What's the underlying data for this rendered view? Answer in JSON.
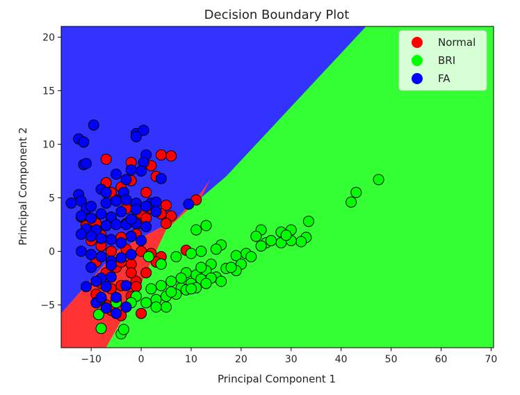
{
  "chart_data": {
    "type": "scatter",
    "title": "Decision Boundary Plot",
    "xlabel": "Principal Component 1",
    "ylabel": "Principal Component 2",
    "xlim": [
      -16,
      70.5
    ],
    "ylim": [
      -9,
      21
    ],
    "xticks": [
      -10,
      0,
      10,
      20,
      30,
      40,
      50,
      60,
      70
    ],
    "yticks": [
      -5,
      0,
      5,
      10,
      15,
      20
    ],
    "legend_position": "top-right",
    "regions": [
      {
        "name": "Normal",
        "color": "#ff3333",
        "polygon": [
          [
            -16,
            -9
          ],
          [
            -16,
            -5.8
          ],
          [
            -5,
            0
          ],
          [
            7,
            3
          ],
          [
            12,
            5.5
          ],
          [
            17,
            8.8
          ],
          [
            12,
            5
          ],
          [
            5,
            2
          ],
          [
            0,
            -3
          ],
          [
            -4,
            -6.5
          ],
          [
            -7,
            -9
          ]
        ]
      },
      {
        "name": "BRI",
        "color": "#33ff33",
        "polygon": [
          [
            -7,
            -9
          ],
          [
            -4,
            -6.5
          ],
          [
            0,
            -3
          ],
          [
            5,
            2
          ],
          [
            12,
            5
          ],
          [
            17,
            8.8
          ],
          [
            45,
            21
          ],
          [
            70.5,
            21
          ],
          [
            70.5,
            -9
          ]
        ]
      },
      {
        "name": "FA",
        "color": "#3333ff",
        "polygon": [
          [
            -16,
            -5.8
          ],
          [
            -5,
            0
          ],
          [
            7,
            3
          ],
          [
            12,
            5.5
          ],
          [
            17,
            8.8
          ],
          [
            16,
            8.8
          ],
          [
            12,
            5
          ],
          [
            17,
            7
          ],
          [
            45,
            21
          ],
          [
            -16,
            21
          ]
        ]
      }
    ],
    "series": [
      {
        "name": "Normal",
        "color": "#ff0000",
        "points": [
          [
            -7,
            8.6
          ],
          [
            -2,
            8.3
          ],
          [
            2,
            8
          ],
          [
            4,
            9
          ],
          [
            6,
            8.9
          ],
          [
            -4,
            6
          ],
          [
            -2,
            6.6
          ],
          [
            1,
            5.5
          ],
          [
            3,
            7
          ],
          [
            -7,
            6.4
          ],
          [
            -5,
            4.8
          ],
          [
            -3,
            4
          ],
          [
            0,
            3.5
          ],
          [
            2,
            4
          ],
          [
            5,
            4.3
          ],
          [
            6,
            3.3
          ],
          [
            4,
            3.5
          ],
          [
            -9,
            2.6
          ],
          [
            -6,
            3
          ],
          [
            -3,
            2.6
          ],
          [
            0,
            2.6
          ],
          [
            1,
            3.1
          ],
          [
            -11,
            2.4
          ],
          [
            -8,
            1.5
          ],
          [
            -4,
            1.3
          ],
          [
            -1,
            1.6
          ],
          [
            5,
            2.6
          ],
          [
            9,
            0.1
          ],
          [
            -10,
            1
          ],
          [
            -8,
            0.5
          ],
          [
            -6,
            0
          ],
          [
            -3,
            0.2
          ],
          [
            0,
            0
          ],
          [
            2,
            -0.2
          ],
          [
            4,
            -0.5
          ],
          [
            -9,
            -1
          ],
          [
            -7,
            -2
          ],
          [
            -5,
            -1.5
          ],
          [
            -2,
            -1.2
          ],
          [
            1,
            -2
          ],
          [
            3,
            -1
          ],
          [
            -8,
            -3
          ],
          [
            -6,
            -3.5
          ],
          [
            -4,
            -3.2
          ],
          [
            -1,
            -2.8
          ],
          [
            -7,
            -5
          ],
          [
            -5,
            -4.5
          ],
          [
            -2,
            -4.2
          ],
          [
            0,
            -5.8
          ],
          [
            -4,
            -6
          ],
          [
            -6,
            -5.5
          ],
          [
            11,
            4.8
          ],
          [
            -1,
            -3.3
          ],
          [
            -9,
            -4
          ],
          [
            -3,
            -5.2
          ],
          [
            -2,
            -2
          ],
          [
            -12,
            3.2
          ],
          [
            -6,
            5.5
          ],
          [
            -4,
            -1
          ]
        ]
      },
      {
        "name": "BRI",
        "color": "#00ff00",
        "points": [
          [
            47.5,
            6.7
          ],
          [
            43,
            5.5
          ],
          [
            42,
            4.6
          ],
          [
            33.5,
            2.8
          ],
          [
            30,
            2
          ],
          [
            28,
            1.8
          ],
          [
            24,
            2
          ],
          [
            23,
            1.4
          ],
          [
            13,
            2.4
          ],
          [
            11,
            2
          ],
          [
            33,
            1.3
          ],
          [
            32,
            0.9
          ],
          [
            30,
            1
          ],
          [
            28,
            0.8
          ],
          [
            25,
            0.8
          ],
          [
            24,
            0.5
          ],
          [
            21,
            -0.2
          ],
          [
            19,
            -0.4
          ],
          [
            16,
            0.6
          ],
          [
            15,
            0.2
          ],
          [
            12,
            0
          ],
          [
            10,
            -0.2
          ],
          [
            20,
            -1.2
          ],
          [
            19,
            -1.8
          ],
          [
            17,
            -1.6
          ],
          [
            14,
            -1.2
          ],
          [
            13,
            -1.8
          ],
          [
            11,
            -2.2
          ],
          [
            9,
            -2
          ],
          [
            7,
            -0.5
          ],
          [
            15,
            -2.4
          ],
          [
            16,
            -2.8
          ],
          [
            12,
            -2.6
          ],
          [
            10,
            -3
          ],
          [
            8,
            -3.4
          ],
          [
            6,
            -2.8
          ],
          [
            4,
            -3.2
          ],
          [
            2,
            -3.5
          ],
          [
            11,
            -3.4
          ],
          [
            9,
            -3.6
          ],
          [
            7,
            -4
          ],
          [
            5,
            -4.2
          ],
          [
            3,
            -4.5
          ],
          [
            1,
            -4.8
          ],
          [
            5,
            -5.2
          ],
          [
            3,
            -5.2
          ],
          [
            -1,
            -4.2
          ],
          [
            -2,
            -4.8
          ],
          [
            -5,
            -4.8
          ],
          [
            -8,
            -4.4
          ],
          [
            -4,
            -7.7
          ],
          [
            -3.5,
            -7.3
          ],
          [
            -8,
            -7.2
          ],
          [
            -8.5,
            -5.9
          ],
          [
            1.5,
            -0.5
          ],
          [
            4,
            -1.2
          ],
          [
            6,
            -3.8
          ],
          [
            10,
            -3.5
          ],
          [
            14,
            -2.5
          ],
          [
            18,
            -1.5
          ],
          [
            22,
            -0.5
          ],
          [
            26,
            1
          ],
          [
            29,
            1.5
          ],
          [
            8,
            -2.5
          ],
          [
            12,
            -1.5
          ],
          [
            13,
            -3
          ]
        ]
      },
      {
        "name": "FA",
        "color": "#0000ff",
        "points": [
          [
            -9.5,
            11.8
          ],
          [
            -12.5,
            10.5
          ],
          [
            -11.5,
            10.2
          ],
          [
            -1,
            11
          ],
          [
            0.5,
            11.3
          ],
          [
            -1,
            10.7
          ],
          [
            -11.5,
            8.1
          ],
          [
            -11,
            8.2
          ],
          [
            1,
            9
          ],
          [
            0.5,
            8.3
          ],
          [
            -2,
            7.6
          ],
          [
            0,
            7.5
          ],
          [
            -5,
            7.2
          ],
          [
            -3,
            6.7
          ],
          [
            4,
            6.8
          ],
          [
            -12.5,
            5.3
          ],
          [
            -8,
            5.8
          ],
          [
            -7,
            5.5
          ],
          [
            -3.5,
            5.5
          ],
          [
            -12,
            4.7
          ],
          [
            -14,
            4.5
          ],
          [
            -11,
            4
          ],
          [
            -10,
            4.2
          ],
          [
            -7,
            4.5
          ],
          [
            -5,
            4.7
          ],
          [
            -3,
            4.8
          ],
          [
            -1,
            4.5
          ],
          [
            2,
            4.5
          ],
          [
            3,
            4.6
          ],
          [
            9.5,
            4.4
          ],
          [
            -12,
            3.3
          ],
          [
            -10,
            3.1
          ],
          [
            -8,
            3.5
          ],
          [
            -6,
            3.2
          ],
          [
            -4,
            3.7
          ],
          [
            -1,
            3.9
          ],
          [
            1,
            4.2
          ],
          [
            3,
            3.7
          ],
          [
            -11,
            2.1
          ],
          [
            -9,
            2
          ],
          [
            -7,
            2.4
          ],
          [
            -5,
            2.5
          ],
          [
            -3,
            2.5
          ],
          [
            -1,
            2.6
          ],
          [
            1,
            2.3
          ],
          [
            -12,
            1.6
          ],
          [
            -10,
            1.4
          ],
          [
            -8,
            1.2
          ],
          [
            -6,
            1.1
          ],
          [
            -4,
            0.8
          ],
          [
            -2,
            1.4
          ],
          [
            0,
            1
          ],
          [
            -12,
            0
          ],
          [
            -10,
            -0.3
          ],
          [
            -8,
            -0.5
          ],
          [
            -6,
            -0.9
          ],
          [
            -4,
            -0.6
          ],
          [
            -2,
            -0.3
          ],
          [
            -11,
            -3.3
          ],
          [
            -8,
            -2.5
          ],
          [
            -6,
            -2.4
          ],
          [
            -3,
            -3.2
          ],
          [
            -9,
            -4.8
          ],
          [
            -7,
            -5.3
          ],
          [
            -5,
            -5.8
          ],
          [
            -3,
            -5.2
          ],
          [
            -8,
            -4.3
          ],
          [
            -5,
            -4.3
          ],
          [
            -7,
            -3.3
          ],
          [
            -10,
            -1.5
          ],
          [
            -9,
            -2.8
          ],
          [
            -2,
            3
          ],
          [
            -6,
            -1.3
          ]
        ]
      }
    ]
  }
}
